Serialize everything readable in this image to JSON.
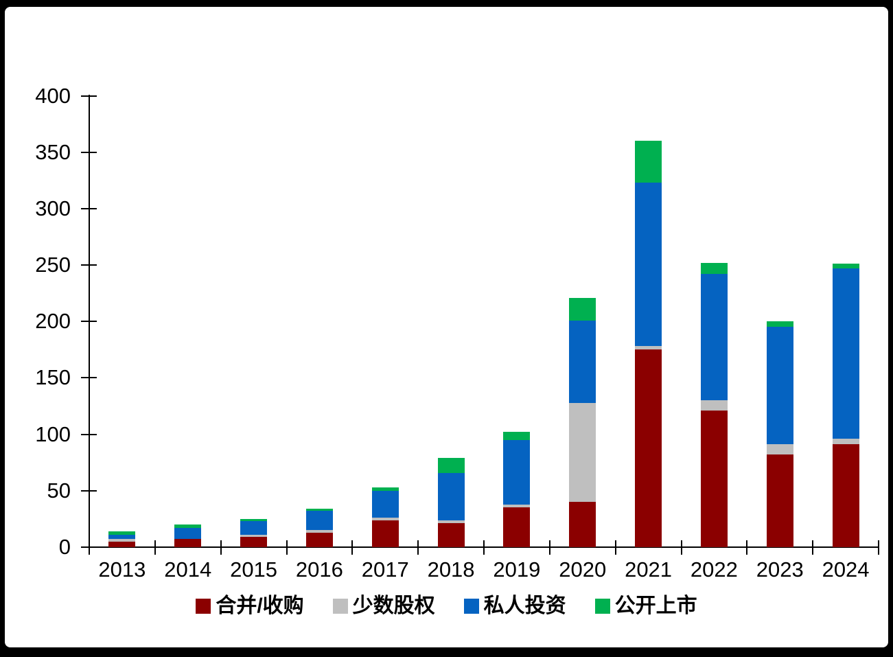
{
  "chart_data": {
    "type": "bar",
    "stacked": true,
    "title": "",
    "xlabel": "",
    "ylabel": "",
    "categories": [
      "2013",
      "2014",
      "2015",
      "2016",
      "2017",
      "2018",
      "2019",
      "2020",
      "2021",
      "2022",
      "2023",
      "2024"
    ],
    "series": [
      {
        "name": "合并/收购",
        "color": "#8B0000",
        "values": [
          5,
          7,
          9,
          13,
          24,
          21,
          35,
          40,
          175,
          121,
          82,
          91
        ]
      },
      {
        "name": "少数股权",
        "color": "#BFBFBF",
        "values": [
          2,
          0,
          2,
          2,
          2,
          3,
          3,
          88,
          3,
          9,
          9,
          5
        ]
      },
      {
        "name": "私人投资",
        "color": "#0563C1",
        "values": [
          4,
          10,
          12,
          17,
          24,
          42,
          57,
          73,
          145,
          112,
          104,
          151
        ]
      },
      {
        "name": "公开上市",
        "color": "#00B050",
        "values": [
          3,
          3,
          2,
          2,
          3,
          13,
          7,
          20,
          37,
          10,
          5,
          4
        ]
      }
    ],
    "ylim": [
      0,
      400
    ],
    "ytick_step": 50,
    "ytick_labels": [
      "0",
      "50",
      "100",
      "150",
      "200",
      "250",
      "300",
      "350",
      "400"
    ],
    "grid": false,
    "legend_position": "bottom",
    "axis_color": "#000000",
    "background_color": "#FFFFFF",
    "frame_color": "#000000"
  }
}
